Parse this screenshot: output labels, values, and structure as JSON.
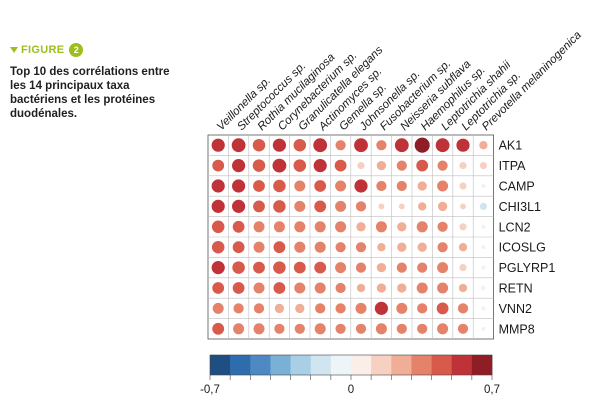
{
  "figure": {
    "label": "FIGURE",
    "number": "2"
  },
  "caption": "Top 10 des corrélations entre les 14 principaux taxa bactériens et les protéines duodénales.",
  "chart_data": {
    "type": "heatmap",
    "columns": [
      "Veillonella sp.",
      "Streptococcus sp.",
      "Rothia mucilaginosa",
      "Corynebacterium sp.",
      "Granulicatella elegans",
      "Actinomyces sp.",
      "Gemella sp.",
      "Johnsonella sp.",
      "Fusobacterium sp.",
      "Neisseria subflava",
      "Haemophilus sp.",
      "Leptotrichia shahii",
      "Leptotrichia sp.",
      "Prevotella melaninogenica"
    ],
    "rows": [
      "AK1",
      "ITPA",
      "CAMP",
      "CHI3L1",
      "LCN2",
      "ICOSLG",
      "PGLYRP1",
      "RETN",
      "VNN2",
      "MMP8"
    ],
    "values": [
      [
        0.5,
        0.55,
        0.45,
        0.5,
        0.45,
        0.55,
        0.3,
        0.55,
        0.3,
        0.55,
        0.65,
        0.55,
        0.5,
        0.2
      ],
      [
        0.4,
        0.5,
        0.45,
        0.55,
        0.45,
        0.5,
        0.4,
        0.15,
        0.25,
        0.3,
        0.4,
        0.3,
        0.15,
        0.15
      ],
      [
        0.5,
        0.5,
        0.4,
        0.45,
        0.35,
        0.4,
        0.35,
        0.5,
        0.3,
        0.3,
        0.25,
        0.35,
        0.15,
        0.05
      ],
      [
        0.5,
        0.5,
        0.4,
        0.45,
        0.35,
        0.4,
        0.35,
        0.3,
        0.1,
        0.1,
        0.2,
        0.25,
        0.1,
        -0.15
      ],
      [
        0.45,
        0.4,
        0.35,
        0.35,
        0.35,
        0.35,
        0.35,
        0.25,
        0.35,
        0.25,
        0.35,
        0.3,
        0.15,
        0.05
      ],
      [
        0.45,
        0.4,
        0.35,
        0.4,
        0.35,
        0.35,
        0.3,
        0.3,
        0.2,
        0.25,
        0.25,
        0.3,
        0.2,
        0.05
      ],
      [
        0.5,
        0.45,
        0.4,
        0.45,
        0.4,
        0.4,
        0.35,
        0.3,
        0.25,
        0.3,
        0.3,
        0.35,
        0.15,
        0.05
      ],
      [
        0.4,
        0.4,
        0.35,
        0.4,
        0.35,
        0.35,
        0.3,
        0.2,
        0.25,
        0.25,
        0.35,
        0.35,
        0.2,
        0.05
      ],
      [
        0.35,
        0.3,
        0.3,
        0.25,
        0.25,
        0.3,
        0.3,
        0.35,
        0.5,
        0.35,
        0.3,
        0.4,
        0.3,
        0.05
      ],
      [
        0.4,
        0.35,
        0.35,
        0.3,
        0.3,
        0.35,
        0.3,
        0.3,
        0.35,
        0.3,
        0.3,
        0.35,
        0.3,
        0.05
      ]
    ],
    "colorbar": {
      "min": -0.7,
      "max": 0.7,
      "tick_labels": [
        "-0,7",
        "0",
        "0,7"
      ],
      "colors": [
        "#1f4e83",
        "#2e6cae",
        "#4e89c3",
        "#7aafd6",
        "#a8cfe6",
        "#d1e5f0",
        "#eef5f9",
        "#fbeee9",
        "#f6d0c1",
        "#f1ae96",
        "#e5826a",
        "#d75a4b",
        "#bf3338",
        "#8f1d26"
      ]
    }
  }
}
